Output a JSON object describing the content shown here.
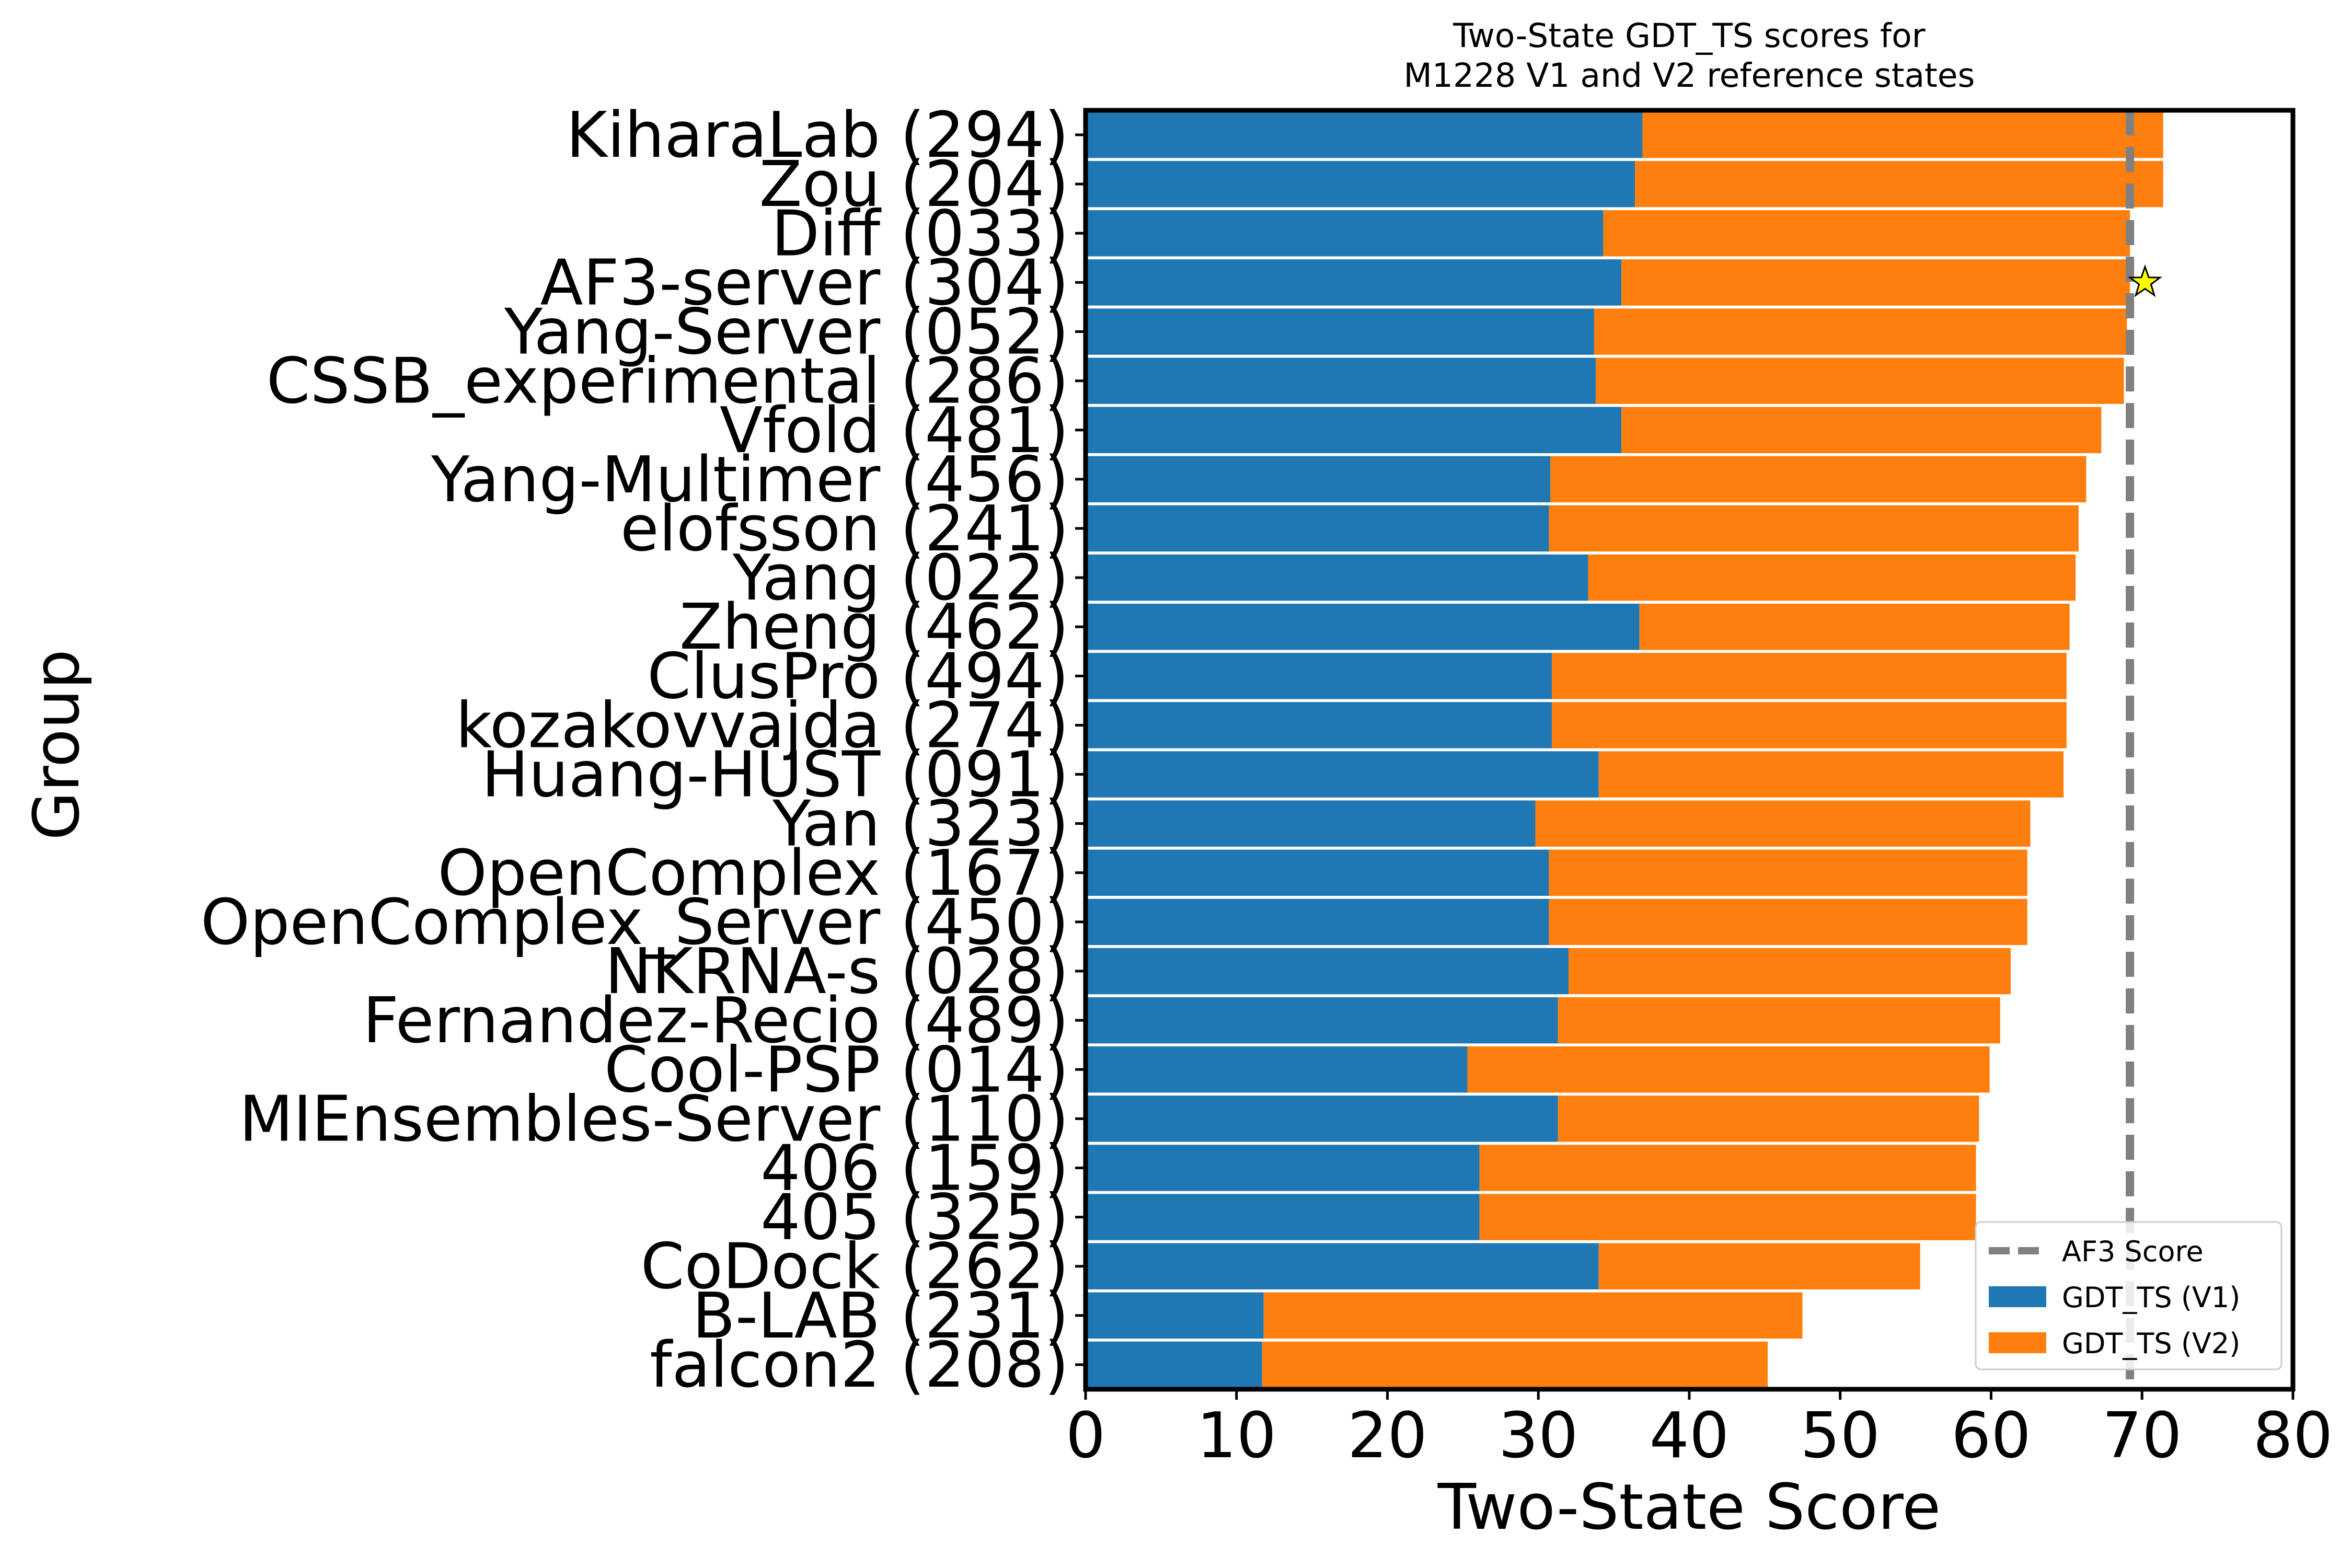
{
  "chart_data": {
    "type": "bar",
    "stacked": true,
    "orientation": "horizontal",
    "title": "Two-State GDT_TS scores for\nM1228 V1 and V2 reference states",
    "xlabel": "Two-State Score",
    "ylabel": "Group",
    "xlim": [
      0,
      80
    ],
    "xticks": [
      0,
      10,
      20,
      30,
      40,
      50,
      60,
      70,
      80
    ],
    "grid": false,
    "legend_position": "lower-right",
    "categories": [
      "KiharaLab (294)",
      "Zou (204)",
      "Diff (033)",
      "AF3-server (304)",
      "Yang-Server (052)",
      "CSSB_experimental (286)",
      "Vfold (481)",
      "Yang-Multimer (456)",
      "elofsson (241)",
      "Yang (022)",
      "Zheng (462)",
      "ClusPro (494)",
      "kozakovvajda (274)",
      "Huang-HUST (091)",
      "Yan (323)",
      "OpenComplex (167)",
      "OpenComplex_Server (450)",
      "NKRNA-s (028)",
      "Fernandez-Recio (489)",
      "Cool-PSP (014)",
      "MIEnsembles-Server (110)",
      "406 (159)",
      "405 (325)",
      "CoDock (262)",
      "B-LAB (231)",
      "falcon2 (208)"
    ],
    "series": [
      {
        "name": "GDT_TS (V1)",
        "color": "#1f77b4",
        "values": [
          36.9,
          36.4,
          34.3,
          35.5,
          33.7,
          33.8,
          35.5,
          30.8,
          30.7,
          33.3,
          36.7,
          30.9,
          30.9,
          34.0,
          29.8,
          30.7,
          30.7,
          32.0,
          31.3,
          25.3,
          31.3,
          26.1,
          26.1,
          34.0,
          11.8,
          11.7
        ]
      },
      {
        "name": "GDT_TS (V2)",
        "color": "#ff7f0e",
        "values": [
          34.5,
          35.0,
          34.9,
          33.7,
          35.3,
          35.0,
          31.8,
          35.5,
          35.1,
          32.3,
          28.5,
          34.1,
          34.1,
          30.8,
          32.8,
          31.7,
          31.7,
          29.3,
          29.3,
          34.6,
          27.9,
          32.9,
          32.9,
          21.3,
          35.7,
          33.5
        ]
      }
    ],
    "reference_line": {
      "name": "AF3 Score",
      "x": 69.2,
      "color": "#808080",
      "style": "dashed"
    },
    "marker": {
      "shape": "star",
      "category": "AF3-server (304)",
      "x": 70.2,
      "color": "#ffff00"
    }
  }
}
